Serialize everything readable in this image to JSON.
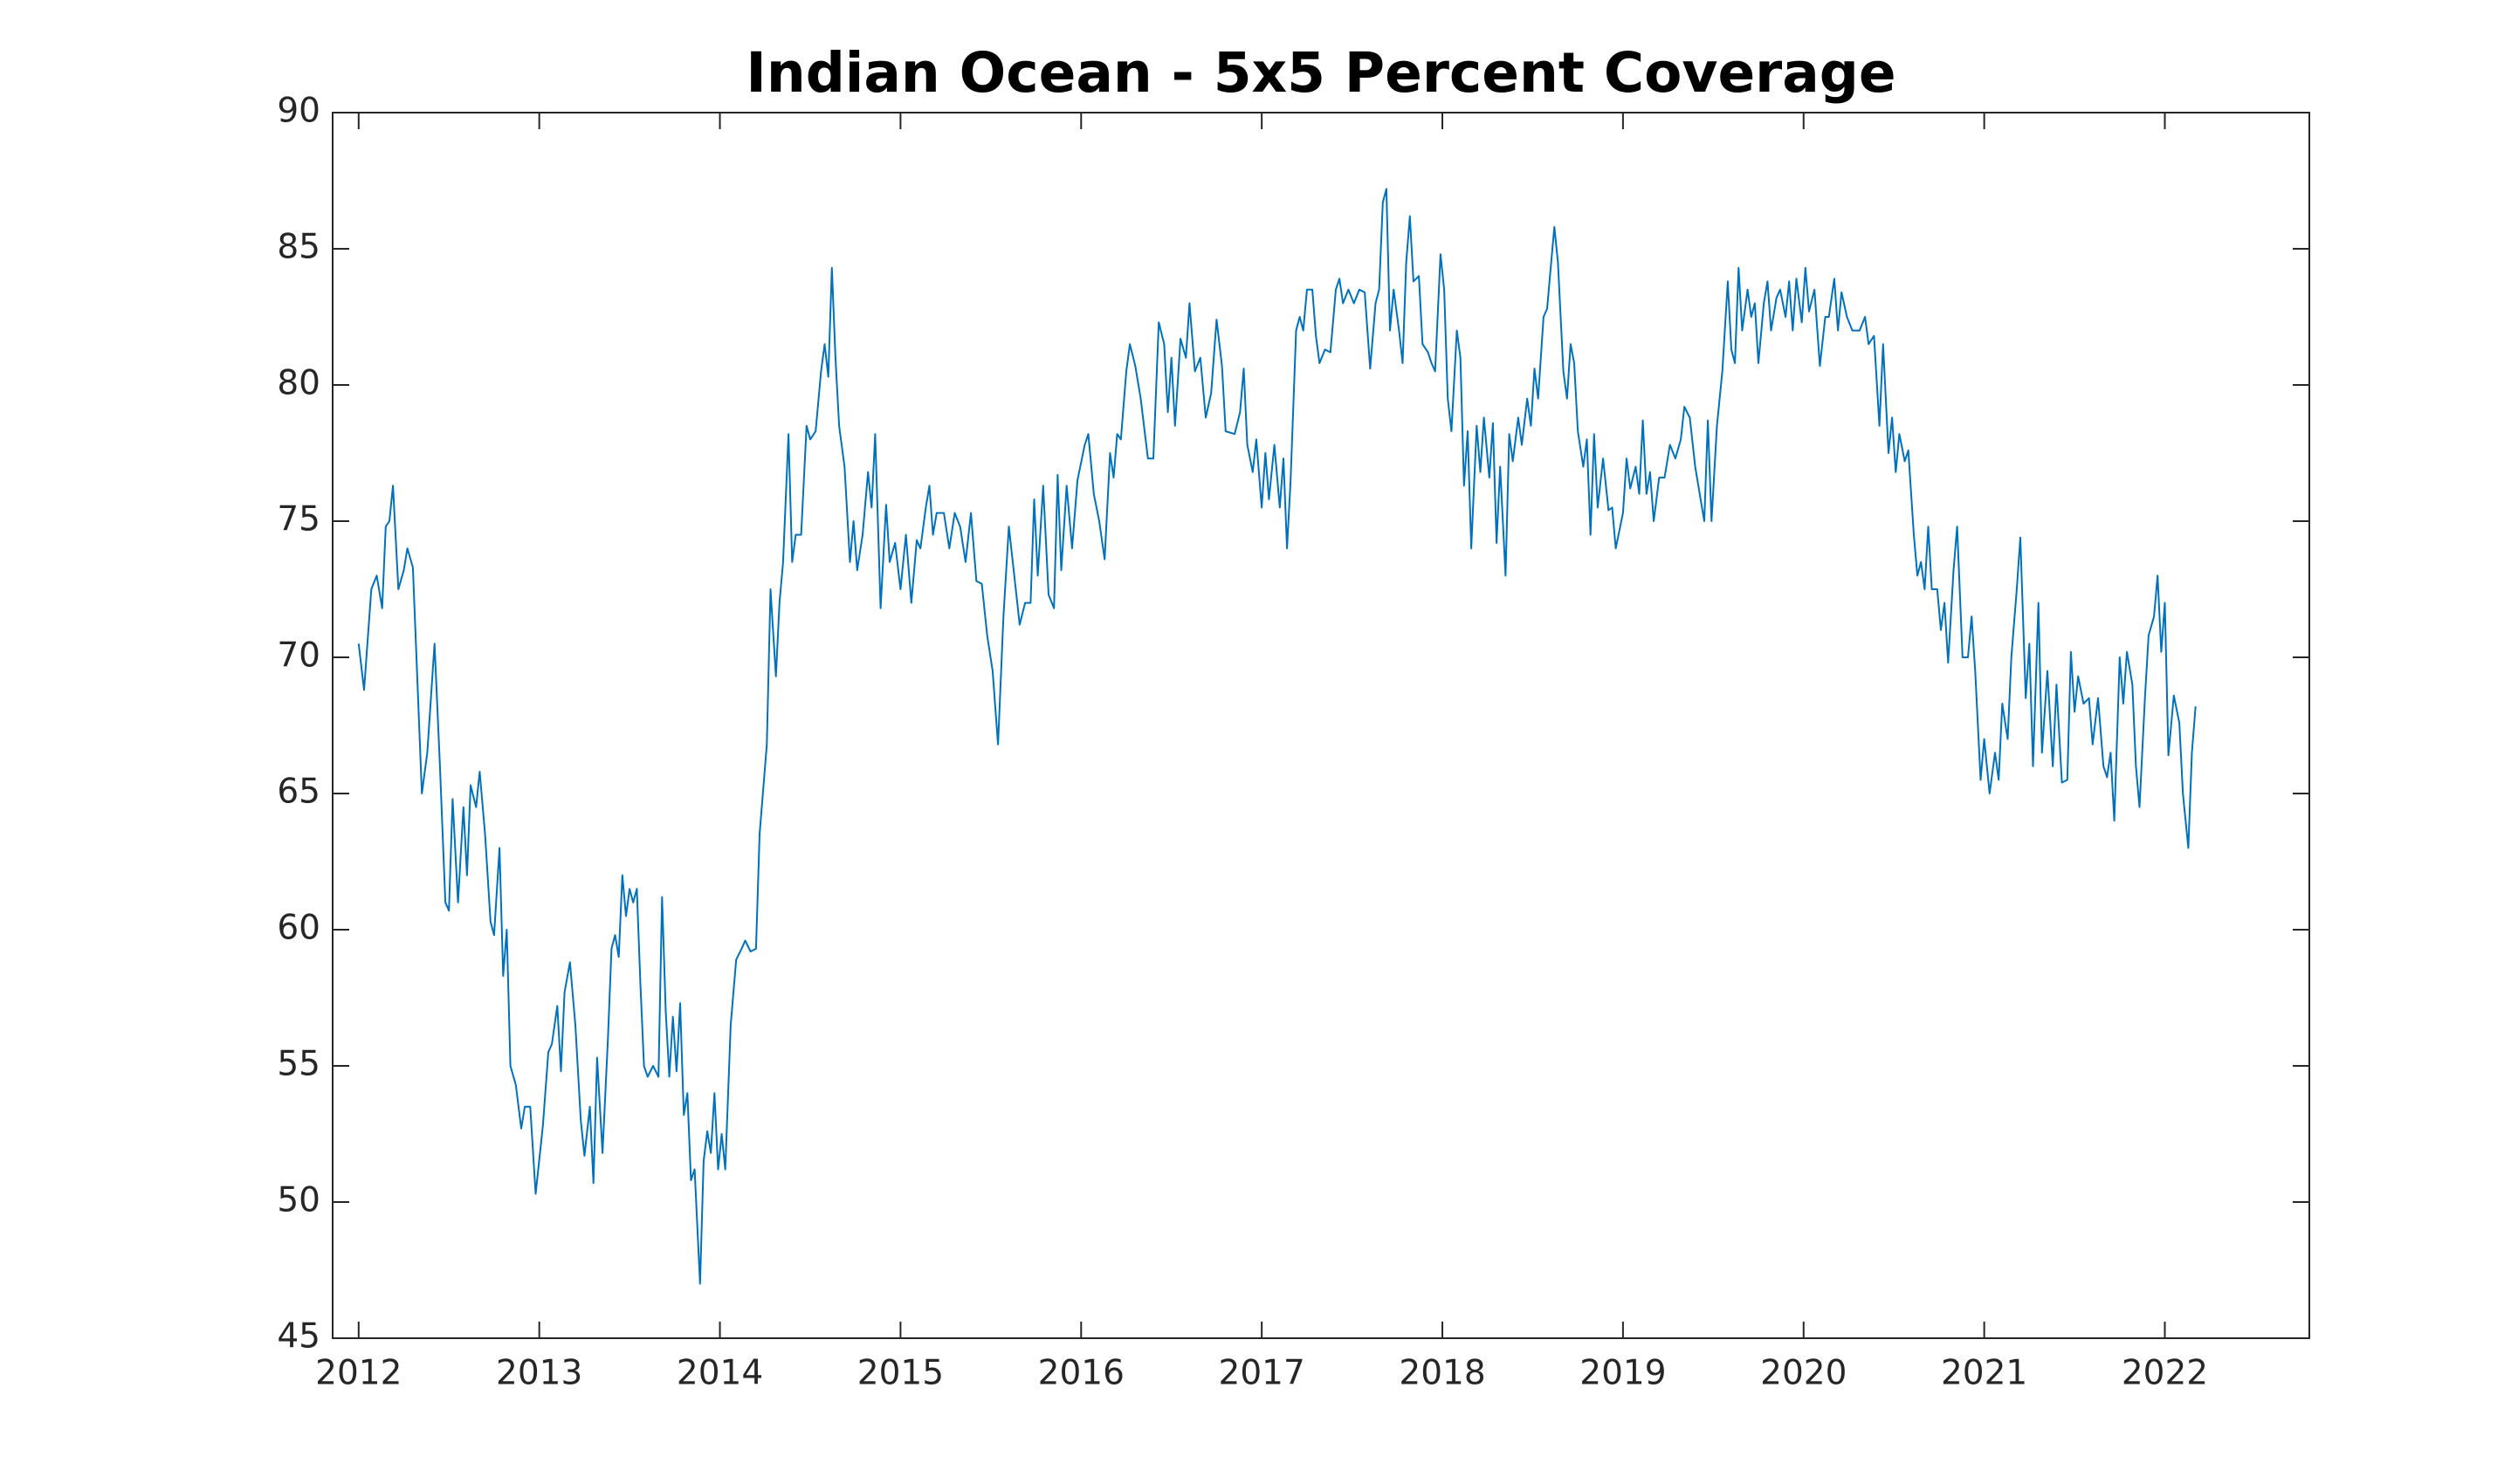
{
  "chart_data": {
    "type": "line",
    "title": "Indian Ocean - 5x5 Percent Coverage",
    "color": "#0072bd",
    "xlim": [
      2011.856,
      2022.8
    ],
    "xticks": [
      2012,
      2013,
      2014,
      2015,
      2016,
      2017,
      2018,
      2019,
      2020,
      2021,
      2022
    ],
    "ylim": [
      45,
      90
    ],
    "yticks": [
      45,
      50,
      55,
      60,
      65,
      70,
      75,
      80,
      85,
      90
    ],
    "grid": false,
    "x": [
      2012.0,
      2012.03,
      2012.07,
      2012.1,
      2012.13,
      2012.15,
      2012.17,
      2012.19,
      2012.22,
      2012.25,
      2012.27,
      2012.3,
      2012.35,
      2012.38,
      2012.42,
      2012.45,
      2012.48,
      2012.5,
      2012.52,
      2012.55,
      2012.58,
      2012.6,
      2012.62,
      2012.65,
      2012.67,
      2012.7,
      2012.73,
      2012.75,
      2012.78,
      2012.8,
      2012.82,
      2012.84,
      2012.87,
      2012.9,
      2012.92,
      2012.95,
      2012.98,
      2013.02,
      2013.05,
      2013.07,
      2013.1,
      2013.12,
      2013.14,
      2013.17,
      2013.2,
      2013.23,
      2013.25,
      2013.28,
      2013.3,
      2013.32,
      2013.35,
      2013.38,
      2013.4,
      2013.42,
      2013.44,
      2013.46,
      2013.48,
      2013.5,
      2013.52,
      2013.54,
      2013.56,
      2013.58,
      2013.6,
      2013.63,
      2013.66,
      2013.68,
      2013.7,
      2013.72,
      2013.74,
      2013.76,
      2013.78,
      2013.8,
      2013.82,
      2013.84,
      2013.86,
      2013.89,
      2013.91,
      2013.93,
      2013.95,
      2013.97,
      2013.99,
      2014.01,
      2014.03,
      2014.06,
      2014.09,
      2014.12,
      2014.14,
      2014.17,
      2014.2,
      2014.22,
      2014.26,
      2014.28,
      2014.31,
      2014.33,
      2014.35,
      2014.38,
      2014.4,
      2014.42,
      2014.45,
      2014.48,
      2014.5,
      2014.53,
      2014.56,
      2014.58,
      2014.6,
      2014.62,
      2014.64,
      2014.66,
      2014.69,
      2014.72,
      2014.74,
      2014.76,
      2014.79,
      2014.82,
      2014.84,
      2014.86,
      2014.89,
      2014.92,
      2014.94,
      2014.97,
      2015.0,
      2015.03,
      2015.06,
      2015.09,
      2015.11,
      2015.14,
      2015.16,
      2015.18,
      2015.2,
      2015.24,
      2015.27,
      2015.3,
      2015.33,
      2015.36,
      2015.39,
      2015.42,
      2015.45,
      2015.48,
      2015.51,
      2015.54,
      2015.57,
      2015.6,
      2015.63,
      2015.66,
      2015.69,
      2015.72,
      2015.74,
      2015.76,
      2015.79,
      2015.82,
      2015.85,
      2015.87,
      2015.89,
      2015.92,
      2015.95,
      2015.98,
      2016.02,
      2016.04,
      2016.07,
      2016.1,
      2016.13,
      2016.16,
      2016.18,
      2016.2,
      2016.22,
      2016.25,
      2016.27,
      2016.3,
      2016.33,
      2016.37,
      2016.4,
      2016.43,
      2016.46,
      2016.48,
      2016.5,
      2016.52,
      2016.55,
      2016.58,
      2016.6,
      2016.63,
      2016.66,
      2016.69,
      2016.72,
      2016.75,
      2016.78,
      2016.8,
      2016.85,
      2016.88,
      2016.9,
      2016.92,
      2016.95,
      2016.97,
      2017.0,
      2017.02,
      2017.04,
      2017.07,
      2017.1,
      2017.12,
      2017.14,
      2017.16,
      2017.19,
      2017.21,
      2017.23,
      2017.25,
      2017.28,
      2017.3,
      2017.32,
      2017.35,
      2017.38,
      2017.41,
      2017.43,
      2017.45,
      2017.48,
      2017.51,
      2017.54,
      2017.57,
      2017.6,
      2017.63,
      2017.65,
      2017.67,
      2017.69,
      2017.71,
      2017.73,
      2017.76,
      2017.78,
      2017.8,
      2017.82,
      2017.84,
      2017.87,
      2017.89,
      2017.92,
      2017.94,
      2017.96,
      2017.99,
      2018.01,
      2018.03,
      2018.05,
      2018.08,
      2018.1,
      2018.12,
      2018.14,
      2018.16,
      2018.19,
      2018.21,
      2018.23,
      2018.26,
      2018.28,
      2018.3,
      2018.32,
      2018.35,
      2018.37,
      2018.39,
      2018.42,
      2018.44,
      2018.47,
      2018.49,
      2018.51,
      2018.53,
      2018.56,
      2018.58,
      2018.6,
      2018.62,
      2018.64,
      2018.67,
      2018.69,
      2018.71,
      2018.73,
      2018.75,
      2018.78,
      2018.8,
      2018.82,
      2018.84,
      2018.86,
      2018.89,
      2018.92,
      2018.94,
      2018.96,
      2019.0,
      2019.02,
      2019.04,
      2019.07,
      2019.09,
      2019.11,
      2019.13,
      2019.15,
      2019.17,
      2019.2,
      2019.23,
      2019.26,
      2019.29,
      2019.32,
      2019.34,
      2019.37,
      2019.4,
      2019.43,
      2019.45,
      2019.47,
      2019.49,
      2019.52,
      2019.55,
      2019.58,
      2019.6,
      2019.62,
      2019.64,
      2019.66,
      2019.69,
      2019.71,
      2019.73,
      2019.75,
      2019.78,
      2019.8,
      2019.82,
      2019.85,
      2019.87,
      2019.9,
      2019.92,
      2019.94,
      2019.96,
      2019.99,
      2020.01,
      2020.03,
      2020.06,
      2020.09,
      2020.12,
      2020.14,
      2020.17,
      2020.19,
      2020.21,
      2020.24,
      2020.27,
      2020.31,
      2020.34,
      2020.36,
      2020.39,
      2020.42,
      2020.44,
      2020.47,
      2020.49,
      2020.51,
      2020.53,
      2020.56,
      2020.58,
      2020.61,
      2020.63,
      2020.65,
      2020.67,
      2020.69,
      2020.71,
      2020.74,
      2020.76,
      2020.78,
      2020.8,
      2020.83,
      2020.85,
      2020.88,
      2020.91,
      2020.93,
      2020.95,
      2020.98,
      2021.0,
      2021.03,
      2021.06,
      2021.08,
      2021.1,
      2021.13,
      2021.15,
      2021.18,
      2021.2,
      2021.23,
      2021.25,
      2021.27,
      2021.3,
      2021.32,
      2021.35,
      2021.38,
      2021.4,
      2021.43,
      2021.46,
      2021.48,
      2021.5,
      2021.52,
      2021.55,
      2021.58,
      2021.6,
      2021.63,
      2021.66,
      2021.68,
      2021.7,
      2021.72,
      2021.75,
      2021.77,
      2021.79,
      2021.82,
      2021.84,
      2021.86,
      2021.89,
      2021.91,
      2021.94,
      2021.96,
      2021.98,
      2022.0,
      2022.02,
      2022.05,
      2022.08,
      2022.1,
      2022.13,
      2022.15,
      2022.17
    ],
    "values": [
      70.5,
      68.8,
      72.5,
      73.0,
      71.8,
      74.8,
      75.0,
      76.3,
      72.5,
      73.2,
      74.0,
      73.3,
      65.0,
      66.5,
      70.5,
      66.0,
      61.0,
      60.7,
      64.8,
      61.0,
      64.5,
      62.0,
      65.3,
      64.5,
      65.8,
      63.5,
      60.3,
      59.8,
      63.0,
      58.3,
      60.0,
      55.0,
      54.3,
      52.7,
      53.5,
      53.5,
      50.3,
      52.8,
      55.5,
      55.8,
      57.2,
      54.8,
      57.7,
      58.8,
      56.5,
      53.0,
      51.7,
      53.5,
      50.7,
      55.3,
      51.8,
      56.0,
      59.3,
      59.8,
      59.0,
      62.0,
      60.5,
      61.5,
      61.0,
      61.5,
      58.0,
      55.0,
      54.6,
      55.0,
      54.6,
      61.2,
      57.0,
      54.6,
      56.8,
      54.8,
      57.3,
      53.2,
      54.0,
      50.8,
      51.2,
      47.0,
      51.5,
      52.6,
      51.8,
      54.0,
      51.2,
      52.5,
      51.2,
      56.5,
      58.9,
      59.3,
      59.6,
      59.2,
      59.3,
      63.5,
      66.8,
      72.5,
      69.3,
      72.0,
      73.5,
      78.2,
      73.5,
      74.5,
      74.5,
      78.5,
      78.0,
      78.3,
      80.5,
      81.5,
      80.3,
      84.3,
      81.0,
      78.5,
      77.0,
      73.5,
      75.0,
      73.2,
      74.5,
      76.8,
      75.5,
      78.2,
      71.8,
      75.6,
      73.5,
      74.2,
      72.5,
      74.5,
      72.0,
      74.3,
      74.0,
      75.5,
      76.3,
      74.5,
      75.3,
      75.3,
      74.0,
      75.3,
      74.8,
      73.5,
      75.3,
      72.8,
      72.7,
      70.8,
      69.5,
      66.8,
      71.5,
      74.8,
      73.0,
      71.2,
      72.0,
      72.0,
      75.8,
      73.0,
      76.3,
      72.3,
      71.8,
      76.7,
      73.2,
      76.3,
      74.0,
      76.5,
      77.8,
      78.2,
      76.0,
      75.0,
      73.6,
      77.5,
      76.6,
      78.2,
      78.0,
      80.5,
      81.5,
      80.7,
      79.5,
      77.3,
      77.3,
      82.3,
      81.5,
      79.0,
      81.0,
      78.5,
      81.7,
      81.0,
      83.0,
      80.5,
      81.0,
      78.8,
      79.7,
      82.4,
      80.7,
      78.3,
      78.2,
      79.0,
      80.6,
      77.8,
      76.8,
      78.0,
      75.5,
      77.5,
      75.8,
      77.8,
      75.5,
      77.3,
      74.0,
      76.5,
      82.0,
      82.5,
      82.0,
      83.5,
      83.5,
      81.8,
      80.8,
      81.3,
      81.2,
      83.5,
      83.9,
      83.0,
      83.5,
      83.0,
      83.5,
      83.4,
      80.6,
      83.0,
      83.5,
      86.7,
      87.2,
      82.0,
      83.5,
      82.0,
      80.8,
      84.5,
      86.2,
      83.8,
      84.0,
      81.5,
      81.2,
      80.8,
      80.5,
      84.8,
      83.5,
      79.5,
      78.3,
      82.0,
      81.0,
      76.3,
      78.3,
      74.0,
      78.5,
      76.8,
      78.8,
      76.6,
      78.6,
      74.2,
      77.0,
      73.0,
      78.2,
      77.2,
      78.8,
      77.8,
      79.5,
      78.5,
      80.6,
      79.5,
      82.5,
      82.8,
      84.3,
      85.8,
      84.5,
      80.5,
      79.5,
      81.5,
      80.8,
      78.3,
      77.0,
      78.0,
      74.5,
      78.2,
      75.5,
      77.3,
      75.4,
      75.5,
      74.0,
      75.3,
      77.3,
      76.2,
      77.0,
      76.0,
      78.7,
      76.0,
      76.8,
      75.0,
      76.6,
      76.6,
      77.8,
      77.3,
      78.0,
      79.2,
      78.8,
      77.0,
      75.8,
      75.0,
      78.7,
      75.0,
      78.5,
      80.5,
      83.8,
      81.3,
      80.8,
      84.3,
      82.0,
      83.5,
      82.5,
      83.0,
      80.8,
      83.0,
      83.8,
      82.0,
      83.2,
      83.5,
      82.5,
      83.8,
      82.0,
      83.9,
      82.3,
      84.3,
      82.7,
      83.5,
      80.7,
      82.5,
      82.5,
      83.9,
      82.0,
      83.4,
      82.5,
      82.0,
      82.0,
      82.5,
      81.5,
      81.8,
      78.5,
      81.5,
      77.5,
      78.8,
      76.8,
      78.2,
      77.2,
      77.6,
      74.5,
      73.0,
      73.5,
      72.5,
      74.8,
      72.5,
      72.5,
      71.0,
      72.0,
      69.8,
      73.2,
      74.8,
      70.0,
      70.0,
      71.5,
      69.5,
      65.5,
      67.0,
      65.0,
      66.5,
      65.5,
      68.3,
      67.0,
      70.0,
      72.5,
      74.4,
      68.5,
      70.5,
      66.0,
      72.0,
      66.5,
      69.5,
      66.0,
      69.0,
      65.4,
      65.5,
      70.2,
      68.0,
      69.3,
      68.3,
      68.5,
      66.8,
      68.5,
      66.0,
      65.6,
      66.5,
      64.0,
      70.0,
      68.3,
      70.2,
      69.0,
      66.0,
      64.5,
      68.5,
      70.8,
      71.5,
      73.0,
      70.2,
      72.0,
      66.4,
      68.6,
      67.6,
      65.0,
      63.0,
      66.5,
      68.2
    ]
  }
}
